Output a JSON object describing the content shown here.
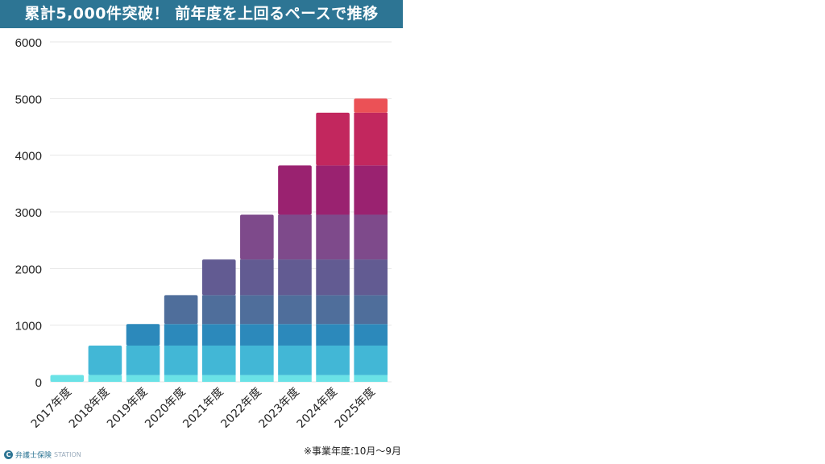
{
  "title": "累計5,000件突破！ 前年度を上回るペースで推移",
  "footnote": "※事業年度:10月〜9月",
  "logo": {
    "name": "弁護士保険",
    "suffix": "STATION"
  },
  "chart_data": {
    "type": "bar",
    "stacked": true,
    "title": "累計5,000件突破！ 前年度を上回るペースで推移",
    "categories": [
      "2017年度",
      "2018年度",
      "2019年度",
      "2020年度",
      "2021年度",
      "2022年度",
      "2023年度",
      "2024年度",
      "2025年度"
    ],
    "cumulative_values": [
      120,
      640,
      1020,
      1530,
      2160,
      2950,
      3820,
      4750,
      5000
    ],
    "segment_colors": [
      "#6ae2e6",
      "#42b7d6",
      "#2c89bb",
      "#4f6e9b",
      "#625b92",
      "#7e4a8b",
      "#9a2270",
      "#c2275e",
      "#eb5156"
    ],
    "ylim": [
      0,
      6000
    ],
    "yticks": [
      0,
      1000,
      2000,
      3000,
      4000,
      5000,
      6000
    ],
    "grid": true,
    "legend": "none",
    "xlabel": "",
    "ylabel": ""
  }
}
